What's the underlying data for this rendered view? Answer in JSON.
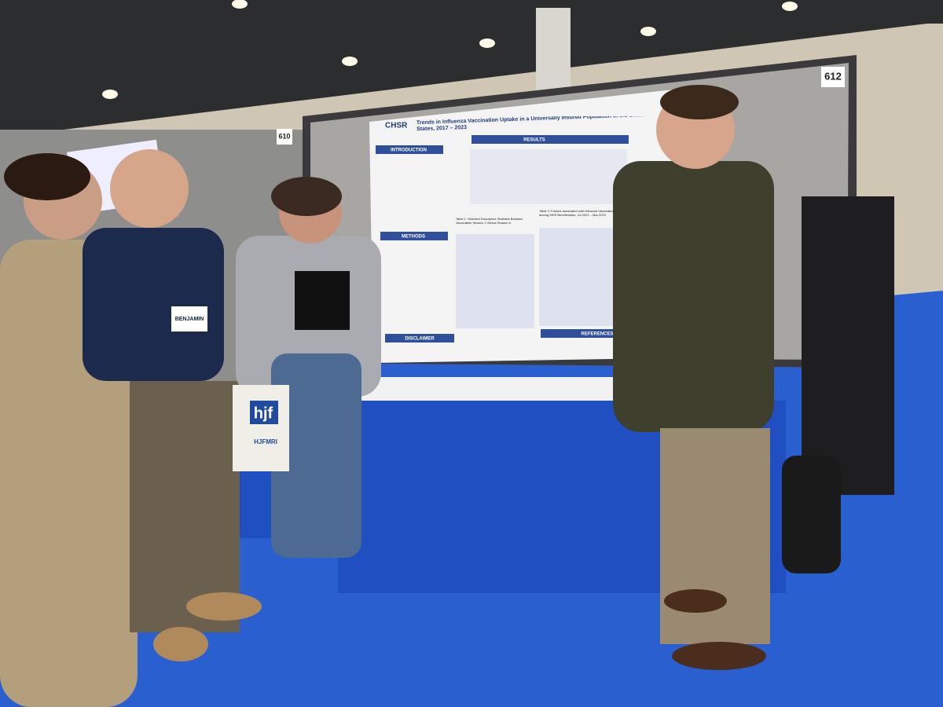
{
  "booth_numbers": [
    "612",
    "610"
  ],
  "poster": {
    "logo": "CHSR",
    "title": "Trends in Influenza Vaccination Uptake in a Universally Insured Population in the United States, 2017 – 2023",
    "sections": [
      "INTRODUCTION",
      "RESULTS",
      "METHODS",
      "DISCLAIMER",
      "REFERENCES"
    ],
    "tables": [
      "Table 1: Selected Descriptive Statistics Between Vaccination Season 1 Versus Season 6",
      "Table 2: Factors associated with Influenza Vaccination Coverage among MHS Beneficiaries, Jul 2022 – Mar 2023"
    ]
  },
  "tote_bag": {
    "logo": "hjf",
    "text": "HJFMRI"
  },
  "name_tag": "BENJAMIN"
}
